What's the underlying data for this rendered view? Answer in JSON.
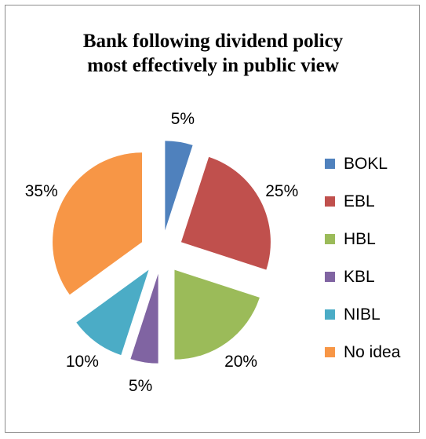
{
  "chart_data": {
    "type": "pie",
    "title_lines": [
      "Bank following dividend policy",
      "most effectively in public view"
    ],
    "categories": [
      "BOKL",
      "EBL",
      "HBL",
      "KBL",
      "NIBL",
      "No idea"
    ],
    "values": [
      5,
      25,
      20,
      5,
      10,
      35
    ],
    "value_labels": [
      "5%",
      "25%",
      "20%",
      "5%",
      "10%",
      "35%"
    ],
    "colors": [
      "#4F81BD",
      "#C0504D",
      "#9BBB59",
      "#8064A2",
      "#4BACC6",
      "#F79646"
    ],
    "exploded": true,
    "legend_position": "right"
  }
}
